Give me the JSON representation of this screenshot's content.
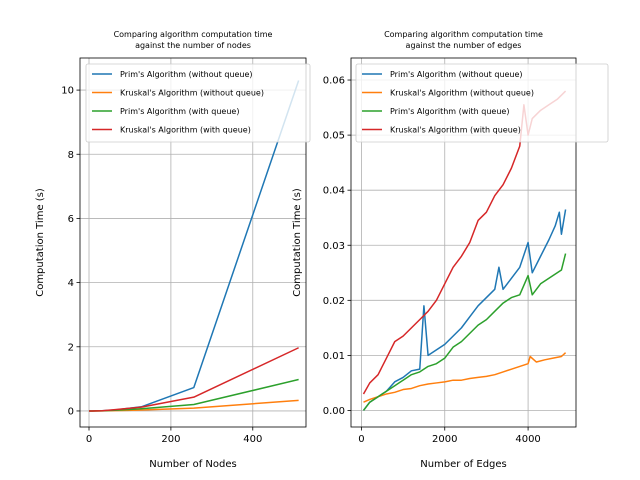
{
  "chart_data": [
    {
      "type": "line",
      "title": "Comparing algorithm computation time\nagainst the number of nodes",
      "xlabel": "Number of Nodes",
      "ylabel": "Computation Time (s)",
      "xlim": [
        -22,
        530
      ],
      "ylim": [
        -0.5,
        11
      ],
      "xticks": [
        0,
        200,
        400
      ],
      "yticks": [
        0,
        2,
        4,
        6,
        8,
        10
      ],
      "grid": true,
      "legend_position": "upper-right",
      "series": [
        {
          "name": "Prim's Algorithm (without queue)",
          "color": "#1f77b4",
          "points": [
            [
              0,
              0
            ],
            [
              2,
              0
            ],
            [
              4,
              0.0
            ],
            [
              8,
              0.0
            ],
            [
              16,
              0.001
            ],
            [
              32,
              0.005
            ],
            [
              64,
              0.03
            ],
            [
              128,
              0.13
            ],
            [
              256,
              0.73
            ],
            [
              512,
              10.3
            ]
          ]
        },
        {
          "name": "Kruskal's Algorithm (without queue)",
          "color": "#ff7f0e",
          "points": [
            [
              0,
              0
            ],
            [
              2,
              0
            ],
            [
              4,
              0
            ],
            [
              8,
              0
            ],
            [
              16,
              0.0
            ],
            [
              32,
              0.002
            ],
            [
              64,
              0.01
            ],
            [
              128,
              0.03
            ],
            [
              256,
              0.09
            ],
            [
              512,
              0.33
            ]
          ]
        },
        {
          "name": "Prim's Algorithm (with queue)",
          "color": "#2ca02c",
          "points": [
            [
              0,
              0
            ],
            [
              2,
              0
            ],
            [
              4,
              0
            ],
            [
              8,
              0
            ],
            [
              16,
              0.001
            ],
            [
              32,
              0.004
            ],
            [
              64,
              0.02
            ],
            [
              128,
              0.07
            ],
            [
              256,
              0.2
            ],
            [
              512,
              0.98
            ]
          ]
        },
        {
          "name": "Kruskal's Algorithm (with queue)",
          "color": "#d62728",
          "points": [
            [
              0,
              0
            ],
            [
              2,
              0
            ],
            [
              4,
              0
            ],
            [
              8,
              0
            ],
            [
              16,
              0.002
            ],
            [
              32,
              0.007
            ],
            [
              64,
              0.04
            ],
            [
              128,
              0.12
            ],
            [
              256,
              0.43
            ],
            [
              512,
              1.97
            ]
          ]
        }
      ]
    },
    {
      "type": "line",
      "title": "Comparing algorithm computation time\nagainst the number of edges",
      "xlabel": "Number of Edges",
      "ylabel": "Computation Time (s)",
      "xlim": [
        -250,
        5150
      ],
      "ylim": [
        -0.003,
        0.064
      ],
      "xticks": [
        0,
        2000,
        4000
      ],
      "yticks": [
        0.0,
        0.01,
        0.02,
        0.03,
        0.04,
        0.05,
        0.06
      ],
      "ytick_labels": [
        "0.00",
        "0.01",
        "0.02",
        "0.03",
        "0.04",
        "0.05",
        "0.06"
      ],
      "grid": true,
      "legend_position": "upper-right",
      "series": [
        {
          "name": "Prim's Algorithm (without queue)",
          "color": "#1f77b4",
          "points": [
            [
              50,
              0.0
            ],
            [
              200,
              0.0015
            ],
            [
              400,
              0.0025
            ],
            [
              600,
              0.0035
            ],
            [
              800,
              0.0052
            ],
            [
              1000,
              0.006
            ],
            [
              1200,
              0.0072
            ],
            [
              1400,
              0.0075
            ],
            [
              1500,
              0.019
            ],
            [
              1600,
              0.01
            ],
            [
              1800,
              0.011
            ],
            [
              2000,
              0.012
            ],
            [
              2200,
              0.0135
            ],
            [
              2400,
              0.015
            ],
            [
              2600,
              0.017
            ],
            [
              2800,
              0.019
            ],
            [
              3000,
              0.0205
            ],
            [
              3200,
              0.022
            ],
            [
              3300,
              0.026
            ],
            [
              3400,
              0.022
            ],
            [
              3600,
              0.024
            ],
            [
              3800,
              0.026
            ],
            [
              4000,
              0.0305
            ],
            [
              4100,
              0.025
            ],
            [
              4300,
              0.028
            ],
            [
              4500,
              0.031
            ],
            [
              4650,
              0.0335
            ],
            [
              4750,
              0.036
            ],
            [
              4800,
              0.032
            ],
            [
              4900,
              0.0365
            ]
          ]
        },
        {
          "name": "Kruskal's Algorithm (without queue)",
          "color": "#ff7f0e",
          "points": [
            [
              50,
              0.0015
            ],
            [
              200,
              0.002
            ],
            [
              400,
              0.0025
            ],
            [
              600,
              0.003
            ],
            [
              800,
              0.0033
            ],
            [
              1000,
              0.0038
            ],
            [
              1200,
              0.004
            ],
            [
              1400,
              0.0045
            ],
            [
              1600,
              0.0048
            ],
            [
              1800,
              0.005
            ],
            [
              2000,
              0.0052
            ],
            [
              2200,
              0.0055
            ],
            [
              2400,
              0.0055
            ],
            [
              2600,
              0.0058
            ],
            [
              2800,
              0.006
            ],
            [
              3000,
              0.0062
            ],
            [
              3200,
              0.0065
            ],
            [
              3400,
              0.007
            ],
            [
              3600,
              0.0075
            ],
            [
              3800,
              0.008
            ],
            [
              4000,
              0.0085
            ],
            [
              4050,
              0.0098
            ],
            [
              4200,
              0.0088
            ],
            [
              4400,
              0.0092
            ],
            [
              4600,
              0.0095
            ],
            [
              4800,
              0.0098
            ],
            [
              4900,
              0.0105
            ]
          ]
        },
        {
          "name": "Prim's Algorithm (with queue)",
          "color": "#2ca02c",
          "points": [
            [
              50,
              0.0
            ],
            [
              200,
              0.0015
            ],
            [
              400,
              0.0025
            ],
            [
              600,
              0.0035
            ],
            [
              800,
              0.0045
            ],
            [
              1000,
              0.0055
            ],
            [
              1200,
              0.0065
            ],
            [
              1400,
              0.007
            ],
            [
              1600,
              0.008
            ],
            [
              1800,
              0.0085
            ],
            [
              2000,
              0.0095
            ],
            [
              2200,
              0.0115
            ],
            [
              2400,
              0.0125
            ],
            [
              2600,
              0.014
            ],
            [
              2800,
              0.0155
            ],
            [
              3000,
              0.0165
            ],
            [
              3200,
              0.018
            ],
            [
              3400,
              0.0195
            ],
            [
              3600,
              0.0205
            ],
            [
              3800,
              0.021
            ],
            [
              4000,
              0.0245
            ],
            [
              4100,
              0.021
            ],
            [
              4300,
              0.023
            ],
            [
              4500,
              0.024
            ],
            [
              4700,
              0.025
            ],
            [
              4800,
              0.0255
            ],
            [
              4900,
              0.0285
            ]
          ]
        },
        {
          "name": "Kruskal's Algorithm (with queue)",
          "color": "#d62728",
          "points": [
            [
              50,
              0.003
            ],
            [
              200,
              0.005
            ],
            [
              400,
              0.0065
            ],
            [
              600,
              0.0095
            ],
            [
              700,
              0.011
            ],
            [
              800,
              0.0125
            ],
            [
              1000,
              0.0135
            ],
            [
              1200,
              0.015
            ],
            [
              1400,
              0.0165
            ],
            [
              1600,
              0.018
            ],
            [
              1800,
              0.02
            ],
            [
              2000,
              0.023
            ],
            [
              2200,
              0.026
            ],
            [
              2400,
              0.028
            ],
            [
              2600,
              0.0305
            ],
            [
              2800,
              0.0345
            ],
            [
              3000,
              0.036
            ],
            [
              3200,
              0.039
            ],
            [
              3400,
              0.041
            ],
            [
              3600,
              0.044
            ],
            [
              3800,
              0.048
            ],
            [
              3900,
              0.0555
            ],
            [
              4000,
              0.05
            ],
            [
              4100,
              0.053
            ],
            [
              4300,
              0.0545
            ],
            [
              4500,
              0.0555
            ],
            [
              4700,
              0.0565
            ],
            [
              4900,
              0.058
            ]
          ]
        }
      ]
    }
  ]
}
